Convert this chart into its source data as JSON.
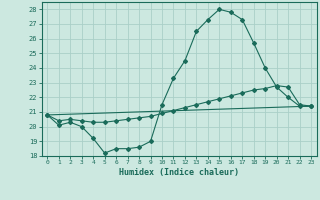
{
  "xlabel": "Humidex (Indice chaleur)",
  "background_color": "#cce8e0",
  "grid_color": "#aacfc8",
  "line_color": "#1a6b5a",
  "x_ticks": [
    0,
    1,
    2,
    3,
    4,
    5,
    6,
    7,
    8,
    9,
    10,
    11,
    12,
    13,
    14,
    15,
    16,
    17,
    18,
    19,
    20,
    21,
    22,
    23
  ],
  "ylim": [
    18,
    28.5
  ],
  "yticks": [
    18,
    19,
    20,
    21,
    22,
    23,
    24,
    25,
    26,
    27,
    28
  ],
  "curve1_x": [
    0,
    1,
    2,
    3,
    4,
    5,
    6,
    7,
    8,
    9,
    10,
    11,
    12,
    13,
    14,
    15,
    16,
    17,
    18,
    19,
    20,
    21,
    22,
    23
  ],
  "curve1_y": [
    20.8,
    20.1,
    20.3,
    20.0,
    19.2,
    18.2,
    18.5,
    18.5,
    18.6,
    19.0,
    21.5,
    23.3,
    24.5,
    26.5,
    27.3,
    28.0,
    27.8,
    27.3,
    25.7,
    24.0,
    22.7,
    22.0,
    21.4,
    21.4
  ],
  "curve2_x": [
    0,
    1,
    2,
    3,
    4,
    5,
    6,
    7,
    8,
    9,
    10,
    11,
    12,
    13,
    14,
    15,
    16,
    17,
    18,
    19,
    20,
    21,
    22,
    23
  ],
  "curve2_y": [
    20.8,
    20.4,
    20.5,
    20.4,
    20.3,
    20.3,
    20.4,
    20.5,
    20.6,
    20.7,
    20.9,
    21.1,
    21.3,
    21.5,
    21.7,
    21.9,
    22.1,
    22.3,
    22.5,
    22.6,
    22.8,
    22.7,
    21.5,
    21.4
  ],
  "curve3_x": [
    0,
    23
  ],
  "curve3_y": [
    20.8,
    21.4
  ]
}
